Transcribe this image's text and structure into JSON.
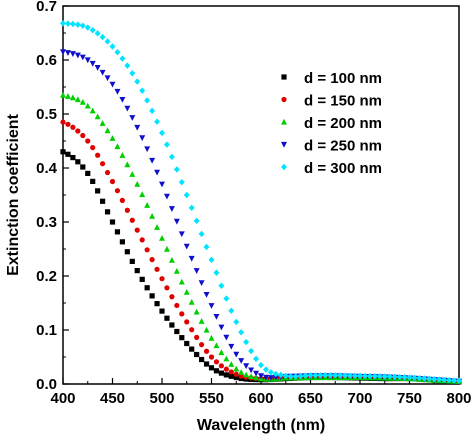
{
  "chart_data": {
    "type": "scatter",
    "xlabel": "Wavelength (nm)",
    "ylabel": "Extinction coefficient",
    "xlim": [
      400,
      800
    ],
    "ylim": [
      0,
      0.7
    ],
    "x_ticks": [
      "400",
      "450",
      "500",
      "550",
      "600",
      "650",
      "700",
      "750",
      "800"
    ],
    "y_ticks": [
      "0.0",
      "0.1",
      "0.2",
      "0.3",
      "0.4",
      "0.5",
      "0.6",
      "0.7"
    ],
    "grid": false,
    "legend_position": "top-right",
    "series": [
      {
        "name": "d = 100 nm",
        "marker": "square",
        "color": "#000000",
        "x": [
          400,
          425,
          450,
          475,
          500,
          525,
          550,
          575,
          600,
          625,
          650,
          675,
          700,
          725,
          750,
          775,
          800
        ],
        "y": [
          0.43,
          0.39,
          0.3,
          0.21,
          0.135,
          0.075,
          0.03,
          0.012,
          0.008,
          0.01,
          0.012,
          0.012,
          0.011,
          0.01,
          0.01,
          0.007,
          0.004
        ]
      },
      {
        "name": "d = 150 nm",
        "marker": "circle",
        "color": "#e00000",
        "x": [
          400,
          425,
          450,
          475,
          500,
          525,
          550,
          575,
          600,
          625,
          650,
          675,
          700,
          725,
          750,
          775,
          800
        ],
        "y": [
          0.485,
          0.45,
          0.375,
          0.285,
          0.195,
          0.115,
          0.05,
          0.018,
          0.01,
          0.012,
          0.013,
          0.014,
          0.014,
          0.013,
          0.011,
          0.008,
          0.005
        ]
      },
      {
        "name": "d = 200 nm",
        "marker": "triangle-up",
        "color": "#00d000",
        "x": [
          400,
          425,
          450,
          475,
          500,
          525,
          550,
          575,
          600,
          625,
          650,
          675,
          700,
          725,
          750,
          775,
          800
        ],
        "y": [
          0.535,
          0.515,
          0.455,
          0.37,
          0.27,
          0.17,
          0.085,
          0.028,
          0.01,
          0.011,
          0.012,
          0.012,
          0.012,
          0.011,
          0.01,
          0.007,
          0.005
        ]
      },
      {
        "name": "d = 250 nm",
        "marker": "triangle-down",
        "color": "#1010cc",
        "x": [
          400,
          425,
          450,
          475,
          500,
          525,
          550,
          575,
          600,
          625,
          650,
          675,
          700,
          725,
          750,
          775,
          800
        ],
        "y": [
          0.615,
          0.6,
          0.555,
          0.475,
          0.37,
          0.255,
          0.145,
          0.055,
          0.015,
          0.014,
          0.015,
          0.015,
          0.014,
          0.013,
          0.011,
          0.008,
          0.005
        ]
      },
      {
        "name": "d = 300 nm",
        "marker": "diamond",
        "color": "#00e5ff",
        "x": [
          400,
          425,
          450,
          475,
          500,
          525,
          550,
          575,
          600,
          625,
          650,
          675,
          700,
          725,
          750,
          775,
          800
        ],
        "y": [
          0.668,
          0.66,
          0.625,
          0.56,
          0.465,
          0.35,
          0.23,
          0.115,
          0.035,
          0.015,
          0.016,
          0.016,
          0.015,
          0.014,
          0.012,
          0.009,
          0.006
        ]
      }
    ]
  }
}
